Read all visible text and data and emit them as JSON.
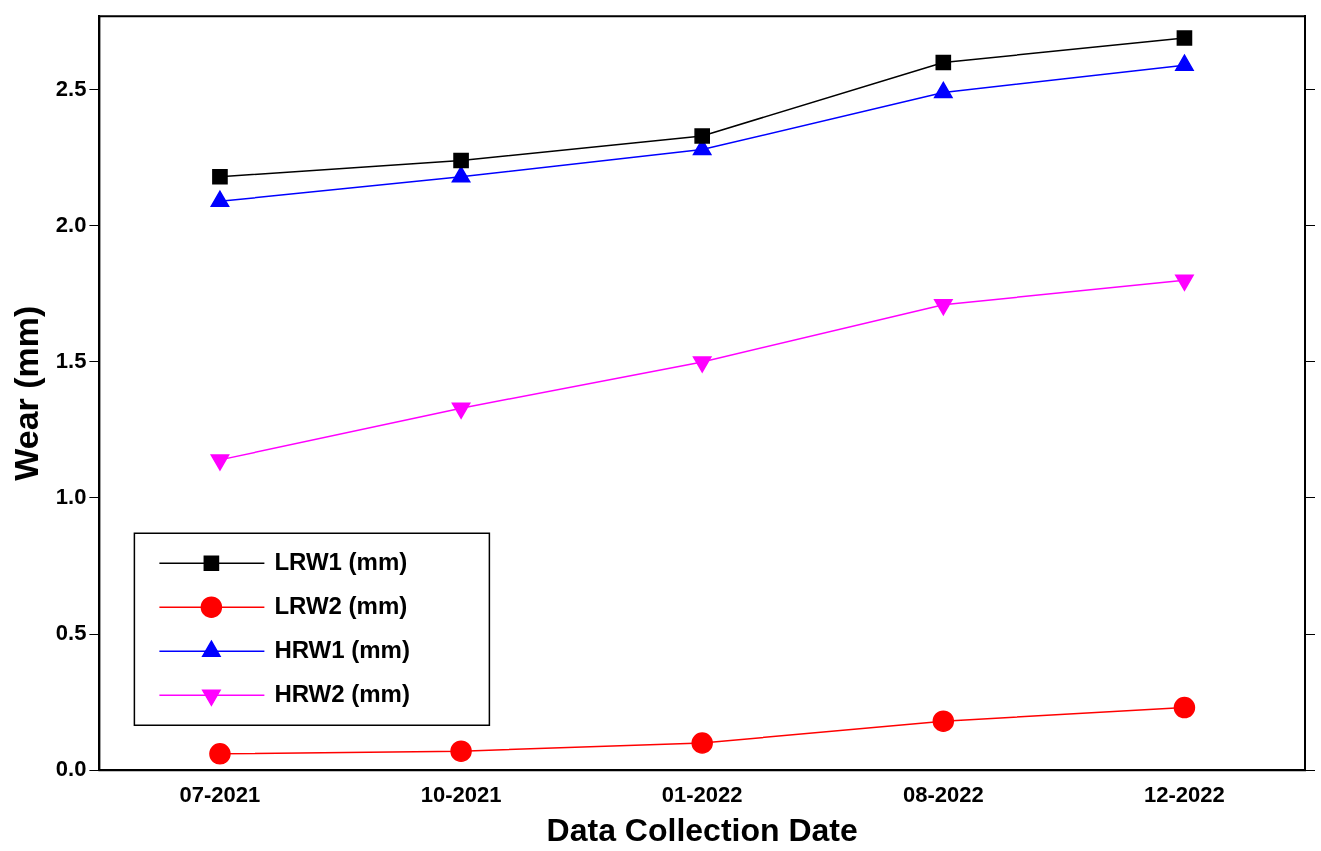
{
  "chart_data": {
    "type": "line",
    "xlabel": "Data Collection Date",
    "ylabel": "Wear (mm)",
    "categories": [
      "07-2021",
      "10-2021",
      "01-2022",
      "08-2022",
      "12-2022"
    ],
    "ylim": [
      0,
      2.77
    ],
    "yticks": [
      {
        "value": 0,
        "label": "0.0"
      },
      {
        "value": 0.5,
        "label": "0.5"
      },
      {
        "value": 1,
        "label": "1.0"
      },
      {
        "value": 1.5,
        "label": "1.5"
      },
      {
        "value": 2,
        "label": "2.0"
      },
      {
        "value": 2.5,
        "label": "2.5"
      }
    ],
    "grid": false,
    "legend": "bottom left",
    "line_style": "solid",
    "series": [
      {
        "name": "LRW1 (mm)",
        "color": "#000000",
        "marker": "square",
        "values": [
          2.18,
          2.24,
          2.33,
          2.6,
          2.69
        ]
      },
      {
        "name": "LRW2 (mm)",
        "color": "#ff0000",
        "marker": "circle",
        "values": [
          0.06,
          0.07,
          0.1,
          0.18,
          0.23
        ]
      },
      {
        "name": "HRW1 (mm)",
        "color": "#0000ff",
        "marker": "triangle",
        "values": [
          2.09,
          2.18,
          2.28,
          2.49,
          2.59
        ]
      },
      {
        "name": "HRW2 (mm)",
        "color": "#ff00ff",
        "marker": "triangle-down",
        "values": [
          1.14,
          1.33,
          1.5,
          1.71,
          1.8
        ]
      }
    ]
  }
}
